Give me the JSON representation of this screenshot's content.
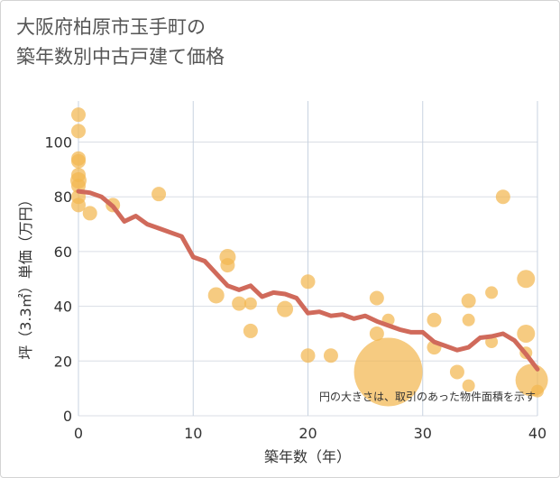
{
  "title_lines": [
    "大阪府柏原市玉手町の",
    "築年数別中古戸建て価格"
  ],
  "chart_data": {
    "type": "scatter",
    "title": "大阪府柏原市玉手町の築年数別中古戸建て価格",
    "xlabel": "築年数（年）",
    "ylabel": "坪（3.3㎡）単価（万円）",
    "xlim": [
      0,
      40
    ],
    "ylim": [
      0,
      115
    ],
    "xticks": [
      0,
      10,
      20,
      30,
      40
    ],
    "yticks": [
      0,
      20,
      40,
      60,
      80,
      100
    ],
    "grid": true,
    "note": "円の大きさは、取引のあった物件面積を示す",
    "scatter_color": "#f3b750",
    "line_color": "#d06a5b",
    "points": [
      {
        "x": 0,
        "y": 110,
        "s": 8
      },
      {
        "x": 0,
        "y": 104,
        "s": 8
      },
      {
        "x": 0,
        "y": 94,
        "s": 8
      },
      {
        "x": 0,
        "y": 93,
        "s": 8
      },
      {
        "x": 0,
        "y": 88,
        "s": 8
      },
      {
        "x": 0,
        "y": 86,
        "s": 9
      },
      {
        "x": 0,
        "y": 84,
        "s": 8
      },
      {
        "x": 0,
        "y": 80,
        "s": 8
      },
      {
        "x": 0,
        "y": 77,
        "s": 8
      },
      {
        "x": 1,
        "y": 74,
        "s": 8
      },
      {
        "x": 3,
        "y": 77,
        "s": 8
      },
      {
        "x": 7,
        "y": 81,
        "s": 8
      },
      {
        "x": 12,
        "y": 44,
        "s": 9
      },
      {
        "x": 13,
        "y": 58,
        "s": 9
      },
      {
        "x": 13,
        "y": 55,
        "s": 8
      },
      {
        "x": 14,
        "y": 41,
        "s": 8
      },
      {
        "x": 15,
        "y": 41,
        "s": 7
      },
      {
        "x": 15,
        "y": 31,
        "s": 8
      },
      {
        "x": 18,
        "y": 39,
        "s": 9
      },
      {
        "x": 20,
        "y": 49,
        "s": 8
      },
      {
        "x": 20,
        "y": 22,
        "s": 8
      },
      {
        "x": 22,
        "y": 22,
        "s": 8
      },
      {
        "x": 26,
        "y": 43,
        "s": 8
      },
      {
        "x": 26,
        "y": 30,
        "s": 8
      },
      {
        "x": 27,
        "y": 35,
        "s": 7
      },
      {
        "x": 27,
        "y": 16,
        "s": 38
      },
      {
        "x": 31,
        "y": 35,
        "s": 8
      },
      {
        "x": 31,
        "y": 25,
        "s": 8
      },
      {
        "x": 33,
        "y": 16,
        "s": 8
      },
      {
        "x": 34,
        "y": 42,
        "s": 8
      },
      {
        "x": 34,
        "y": 35,
        "s": 7
      },
      {
        "x": 34,
        "y": 11,
        "s": 7
      },
      {
        "x": 36,
        "y": 45,
        "s": 7
      },
      {
        "x": 36,
        "y": 27,
        "s": 7
      },
      {
        "x": 37,
        "y": 80,
        "s": 8
      },
      {
        "x": 39,
        "y": 50,
        "s": 10
      },
      {
        "x": 39,
        "y": 30,
        "s": 10
      },
      {
        "x": 39,
        "y": 23,
        "s": 7
      },
      {
        "x": 39.5,
        "y": 13,
        "s": 18
      },
      {
        "x": 40,
        "y": 9,
        "s": 7
      }
    ],
    "trend": {
      "x": [
        0,
        1,
        2,
        3,
        4,
        5,
        6,
        7,
        8,
        9,
        10,
        11,
        12,
        13,
        14,
        15,
        16,
        17,
        18,
        19,
        20,
        21,
        22,
        23,
        24,
        25,
        26,
        27,
        28,
        29,
        30,
        31,
        32,
        33,
        34,
        35,
        36,
        37,
        38,
        39,
        40
      ],
      "y": [
        82,
        81.5,
        80,
        76.5,
        71,
        73,
        70,
        68.5,
        67,
        65.5,
        58,
        56.5,
        52,
        47.5,
        46,
        47.5,
        43.5,
        45,
        44.5,
        43,
        37.5,
        38,
        36.5,
        37,
        35.5,
        36.5,
        34.5,
        33,
        31.5,
        30.5,
        30.5,
        27,
        25.5,
        24,
        25,
        28.5,
        29,
        30,
        27.5,
        22.5,
        17
      ]
    }
  }
}
